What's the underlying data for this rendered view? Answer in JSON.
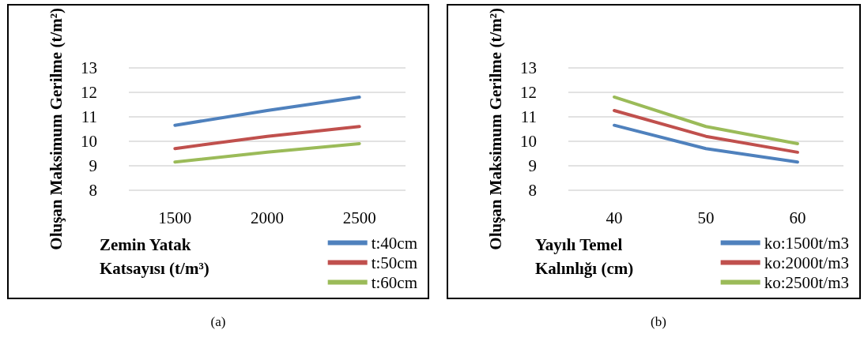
{
  "chart_data": [
    {
      "type": "line",
      "xlabel": "Zemin Yatak Katsayısı (t/m³)",
      "ylabel": "Oluşan Maksimum Gerilme (t/m²)",
      "categories": [
        "1500",
        "2000",
        "2500"
      ],
      "series": [
        {
          "name": "t:40cm",
          "color": "#4f81bd",
          "values": [
            10.65,
            11.25,
            11.8
          ]
        },
        {
          "name": "t:50cm",
          "color": "#c0504d",
          "values": [
            9.7,
            10.2,
            10.6
          ]
        },
        {
          "name": "t:60cm",
          "color": "#9bbb59",
          "values": [
            9.15,
            9.55,
            9.9
          ]
        }
      ],
      "ylim": [
        8,
        13
      ],
      "yticks": [
        8,
        9,
        10,
        11,
        12,
        13
      ],
      "grid": "y",
      "legend": "bottom right",
      "marker": "none",
      "line_style": "solid",
      "annotations": [
        "(a)"
      ]
    },
    {
      "type": "line",
      "xlabel": "Yayılı Temel Kalınlığı (cm)",
      "ylabel": "Oluşan Maksimum Gerilme (t/m²)",
      "categories": [
        "40",
        "50",
        "60"
      ],
      "series": [
        {
          "name": "ko:1500t/m3",
          "color": "#4f81bd",
          "values": [
            10.65,
            9.7,
            9.15
          ]
        },
        {
          "name": "ko:2000t/m3",
          "color": "#c0504d",
          "values": [
            11.25,
            10.2,
            9.55
          ]
        },
        {
          "name": "ko:2500t/m3",
          "color": "#9bbb59",
          "values": [
            11.8,
            10.6,
            9.9
          ]
        }
      ],
      "ylim": [
        8,
        13
      ],
      "yticks": [
        8,
        9,
        10,
        11,
        12,
        13
      ],
      "grid": "y",
      "legend": "bottom right",
      "marker": "none",
      "line_style": "solid",
      "annotations": [
        "(b)"
      ]
    }
  ]
}
